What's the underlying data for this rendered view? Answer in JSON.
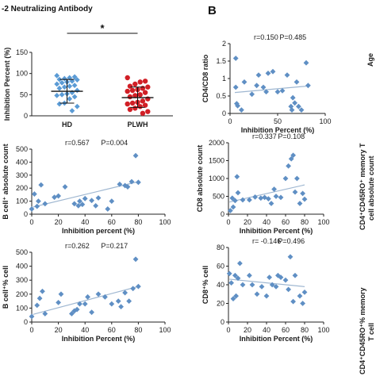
{
  "header": {
    "title": "-2 Neutralizing Antibody",
    "panel_b_letter": "B",
    "right_edge_age_label": "Age"
  },
  "colors": {
    "hd": "#5b9bd5",
    "plwh": "#d11f26",
    "scatter": "#5f8fc4",
    "trend": "#9fb7d1"
  },
  "chart_data": [
    {
      "id": "A-top",
      "type": "scatter",
      "xlabel": "",
      "ylabel": "Inhibition Percent (%)",
      "categories": [
        "HD",
        "PLWH"
      ],
      "ylim": [
        0,
        150
      ],
      "yticks": [
        "0",
        "50",
        "100",
        "150"
      ],
      "significance": "*",
      "series": [
        {
          "category": "HD",
          "mean": 58,
          "sd_low": 30,
          "sd_high": 86,
          "values": [
            95,
            92,
            90,
            88,
            86,
            85,
            82,
            80,
            78,
            75,
            72,
            70,
            68,
            65,
            60,
            55,
            52,
            50,
            48,
            45,
            40,
            30,
            28,
            22,
            12
          ]
        },
        {
          "category": "PLWH",
          "mean": 43,
          "sd_low": 20,
          "sd_high": 68,
          "values": [
            90,
            82,
            80,
            75,
            70,
            68,
            65,
            62,
            60,
            58,
            55,
            50,
            48,
            45,
            40,
            35,
            32,
            30,
            28,
            25,
            22,
            18,
            15,
            10,
            6
          ]
        }
      ]
    },
    {
      "id": "B-top",
      "type": "scatter",
      "xlabel": "Inhibition Percent (%)",
      "ylabel": "CD4/CD8 ratio",
      "xlim": [
        0,
        100
      ],
      "xticks": [
        "0",
        "50",
        "100"
      ],
      "ylim": [
        0,
        2
      ],
      "yticks": [
        "0",
        "0.5",
        "1",
        "1.5",
        "2"
      ],
      "stat": {
        "r": "r=0.150",
        "p": "P=0.485"
      },
      "trend": {
        "x0": 5,
        "y0": 0.6,
        "x1": 80,
        "y1": 0.78
      },
      "points": [
        [
          6,
          1.58
        ],
        [
          6,
          0.75
        ],
        [
          7,
          0.28
        ],
        [
          8,
          0.22
        ],
        [
          12,
          0.1
        ],
        [
          15,
          0.9
        ],
        [
          23,
          0.55
        ],
        [
          28,
          0.8
        ],
        [
          30,
          1.1
        ],
        [
          35,
          0.75
        ],
        [
          38,
          0.62
        ],
        [
          40,
          1.15
        ],
        [
          45,
          1.2
        ],
        [
          50,
          0.62
        ],
        [
          55,
          0.65
        ],
        [
          60,
          1.1
        ],
        [
          64,
          0.2
        ],
        [
          65,
          0.1
        ],
        [
          66,
          0.45
        ],
        [
          68,
          0.3
        ],
        [
          70,
          0.9
        ],
        [
          72,
          0.2
        ],
        [
          75,
          0.1
        ],
        [
          80,
          1.45
        ],
        [
          82,
          0.8
        ]
      ]
    },
    {
      "id": "A-mid",
      "type": "scatter",
      "xlabel": "Inhibition percent (%)",
      "ylabel": "B cell⁺ absolute count",
      "xlim": [
        0,
        100
      ],
      "xticks": [
        "0",
        "20",
        "40",
        "60",
        "80",
        "100"
      ],
      "ylim": [
        0,
        500
      ],
      "yticks": [
        "0",
        "100",
        "200",
        "300",
        "400",
        "500"
      ],
      "stat": {
        "r": "r=0.567",
        "p": "P=0.004"
      },
      "trend": {
        "x0": 1,
        "y0": 55,
        "x1": 80,
        "y1": 250
      },
      "points": [
        [
          0,
          40
        ],
        [
          2,
          155
        ],
        [
          4,
          60
        ],
        [
          5,
          100
        ],
        [
          7,
          225
        ],
        [
          10,
          80
        ],
        [
          17,
          130
        ],
        [
          20,
          140
        ],
        [
          25,
          210
        ],
        [
          32,
          80
        ],
        [
          35,
          65
        ],
        [
          36,
          100
        ],
        [
          38,
          75
        ],
        [
          40,
          120
        ],
        [
          45,
          105
        ],
        [
          48,
          65
        ],
        [
          50,
          125
        ],
        [
          57,
          40
        ],
        [
          60,
          100
        ],
        [
          66,
          230
        ],
        [
          70,
          220
        ],
        [
          72,
          210
        ],
        [
          75,
          250
        ],
        [
          78,
          450
        ],
        [
          80,
          245
        ]
      ]
    },
    {
      "id": "B-mid",
      "type": "scatter",
      "xlabel": "Inhibition Percent (%)",
      "ylabel": "CD8 absolute count",
      "xlim": [
        0,
        100
      ],
      "xticks": [
        "0",
        "20",
        "40",
        "60",
        "80",
        "100"
      ],
      "ylim": [
        0,
        2000
      ],
      "yticks": [
        "0",
        "500",
        "1000",
        "1500",
        "2000"
      ],
      "stat": {
        "r": "r=0.337",
        "p": "P=0.108"
      },
      "trend": {
        "x0": 1,
        "y0": 340,
        "x1": 80,
        "y1": 820
      },
      "points": [
        [
          2,
          100
        ],
        [
          4,
          450
        ],
        [
          5,
          200
        ],
        [
          7,
          380
        ],
        [
          9,
          1050
        ],
        [
          10,
          600
        ],
        [
          15,
          400
        ],
        [
          22,
          400
        ],
        [
          28,
          480
        ],
        [
          34,
          450
        ],
        [
          38,
          470
        ],
        [
          42,
          430
        ],
        [
          45,
          300
        ],
        [
          48,
          700
        ],
        [
          50,
          500
        ],
        [
          55,
          470
        ],
        [
          60,
          1000
        ],
        [
          63,
          1350
        ],
        [
          66,
          1550
        ],
        [
          68,
          1650
        ],
        [
          70,
          620
        ],
        [
          72,
          1000
        ],
        [
          75,
          300
        ],
        [
          78,
          580
        ],
        [
          80,
          420
        ]
      ]
    },
    {
      "id": "A-bot",
      "type": "scatter",
      "xlabel": "Inhibition Percent (%)",
      "ylabel": "B cell⁺% cell",
      "xlim": [
        0,
        100
      ],
      "xticks": [
        "0",
        "20",
        "40",
        "60",
        "80",
        "100"
      ],
      "ylim": [
        0,
        500
      ],
      "yticks": [
        "0",
        "100",
        "200",
        "300",
        "400",
        "500"
      ],
      "stat": {
        "r": "r=0.262",
        "p": "P=0.217"
      },
      "trend": {
        "x0": 1,
        "y0": 55,
        "x1": 80,
        "y1": 255
      },
      "points": [
        [
          0,
          40
        ],
        [
          4,
          120
        ],
        [
          6,
          170
        ],
        [
          8,
          220
        ],
        [
          10,
          60
        ],
        [
          20,
          140
        ],
        [
          22,
          200
        ],
        [
          30,
          60
        ],
        [
          32,
          80
        ],
        [
          34,
          90
        ],
        [
          36,
          130
        ],
        [
          40,
          130
        ],
        [
          42,
          180
        ],
        [
          45,
          70
        ],
        [
          50,
          200
        ],
        [
          55,
          180
        ],
        [
          60,
          130
        ],
        [
          65,
          150
        ],
        [
          67,
          110
        ],
        [
          70,
          210
        ],
        [
          73,
          150
        ],
        [
          76,
          240
        ],
        [
          78,
          450
        ],
        [
          80,
          255
        ]
      ]
    },
    {
      "id": "B-bot",
      "type": "scatter",
      "xlabel": "Inhibition Percent (%)",
      "ylabel": "CD8⁺% cell",
      "xlim": [
        0,
        100
      ],
      "xticks": [
        "0",
        "20",
        "40",
        "60",
        "80",
        "100"
      ],
      "ylim": [
        0,
        80
      ],
      "yticks": [
        "0",
        "20",
        "40",
        "60",
        "80"
      ],
      "stat": {
        "r": "r= -0.146",
        "p": "P=0.496"
      },
      "trend": {
        "x0": 1,
        "y0": 46,
        "x1": 80,
        "y1": 38
      },
      "points": [
        [
          1,
          52
        ],
        [
          3,
          42
        ],
        [
          5,
          25
        ],
        [
          7,
          50
        ],
        [
          8,
          28
        ],
        [
          10,
          47
        ],
        [
          12,
          63
        ],
        [
          15,
          40
        ],
        [
          22,
          50
        ],
        [
          25,
          40
        ],
        [
          30,
          30
        ],
        [
          35,
          38
        ],
        [
          40,
          28
        ],
        [
          43,
          48
        ],
        [
          46,
          40
        ],
        [
          50,
          38
        ],
        [
          52,
          50
        ],
        [
          55,
          48
        ],
        [
          60,
          45
        ],
        [
          63,
          35
        ],
        [
          65,
          70
        ],
        [
          68,
          22
        ],
        [
          70,
          50
        ],
        [
          75,
          28
        ],
        [
          78,
          20
        ],
        [
          80,
          32
        ]
      ]
    }
  ],
  "right_edge_labels": [
    "CD4⁺CD45RO⁺ memory T",
    "cell absolute count",
    "CD4⁺CD45RO⁺% memory",
    "T cell"
  ]
}
